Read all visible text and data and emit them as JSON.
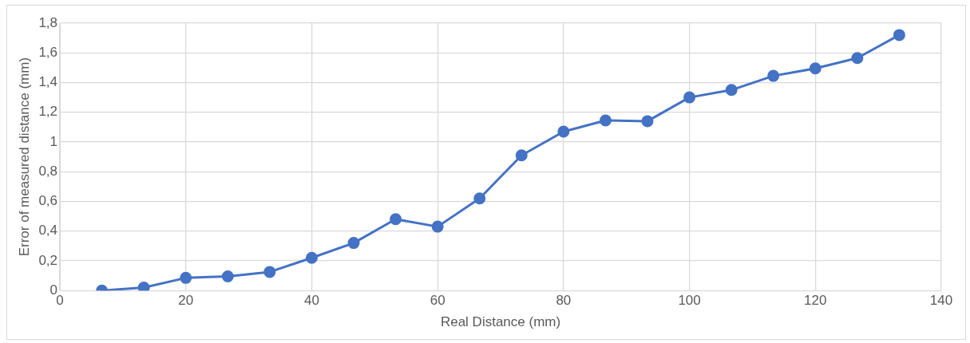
{
  "chart_data": {
    "type": "line",
    "xlabel": "Real Distance (mm)",
    "ylabel": "Error of measured distance (mm)",
    "x": [
      6.67,
      13.33,
      20,
      26.67,
      33.33,
      40,
      46.67,
      53.33,
      60,
      66.67,
      73.33,
      80,
      86.67,
      93.33,
      100,
      106.67,
      113.33,
      120,
      126.67,
      133.33
    ],
    "series": [
      {
        "color": "#4472c4",
        "values": [
          0,
          0.02,
          0.085,
          0.095,
          0.125,
          0.22,
          0.32,
          0.48,
          0.43,
          0.62,
          0.91,
          1.07,
          1.145,
          1.14,
          1.3,
          1.35,
          1.445,
          1.495,
          1.565,
          1.72
        ]
      }
    ],
    "xlim": [
      0,
      140
    ],
    "xticks": [
      0,
      20,
      40,
      60,
      80,
      100,
      120,
      140
    ],
    "ylim": [
      0,
      1.8
    ],
    "yticks": [
      0,
      {
        "value": 0.2,
        "label": "0,2"
      },
      {
        "value": 0.4,
        "label": "0,4"
      },
      {
        "value": 0.6,
        "label": "0,6"
      },
      {
        "value": 0.8,
        "label": "0,8"
      },
      1,
      {
        "value": 1.2,
        "label": "1,2"
      },
      {
        "value": 1.4,
        "label": "1,4"
      },
      {
        "value": 1.6,
        "label": "1,6"
      },
      {
        "value": 1.8,
        "label": "1,8"
      }
    ],
    "grid": true,
    "legend": false,
    "marker": "circle",
    "line_style": "solid"
  }
}
